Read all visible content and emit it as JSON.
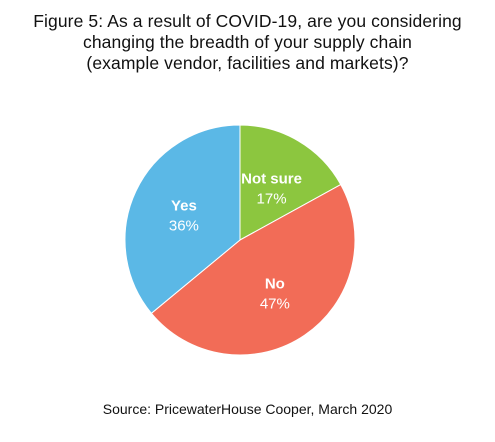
{
  "chart_data": {
    "type": "pie",
    "title_lines": [
      "Figure 5: As a result of COVID-19, are you considering",
      "changing the breadth of your supply chain",
      "(example vendor, facilities and markets)?"
    ],
    "slices": [
      {
        "label": "Not sure",
        "value": 17,
        "value_label": "17%",
        "color": "#8cc63f"
      },
      {
        "label": "No",
        "value": 47,
        "value_label": "47%",
        "color": "#f26c57"
      },
      {
        "label": "Yes",
        "value": 36,
        "value_label": "36%",
        "color": "#5bb8e6"
      }
    ],
    "start": "12 o'clock",
    "direction": "clockwise",
    "legend": "none",
    "source": "Source: PricewaterHouse Cooper, March 2020"
  }
}
